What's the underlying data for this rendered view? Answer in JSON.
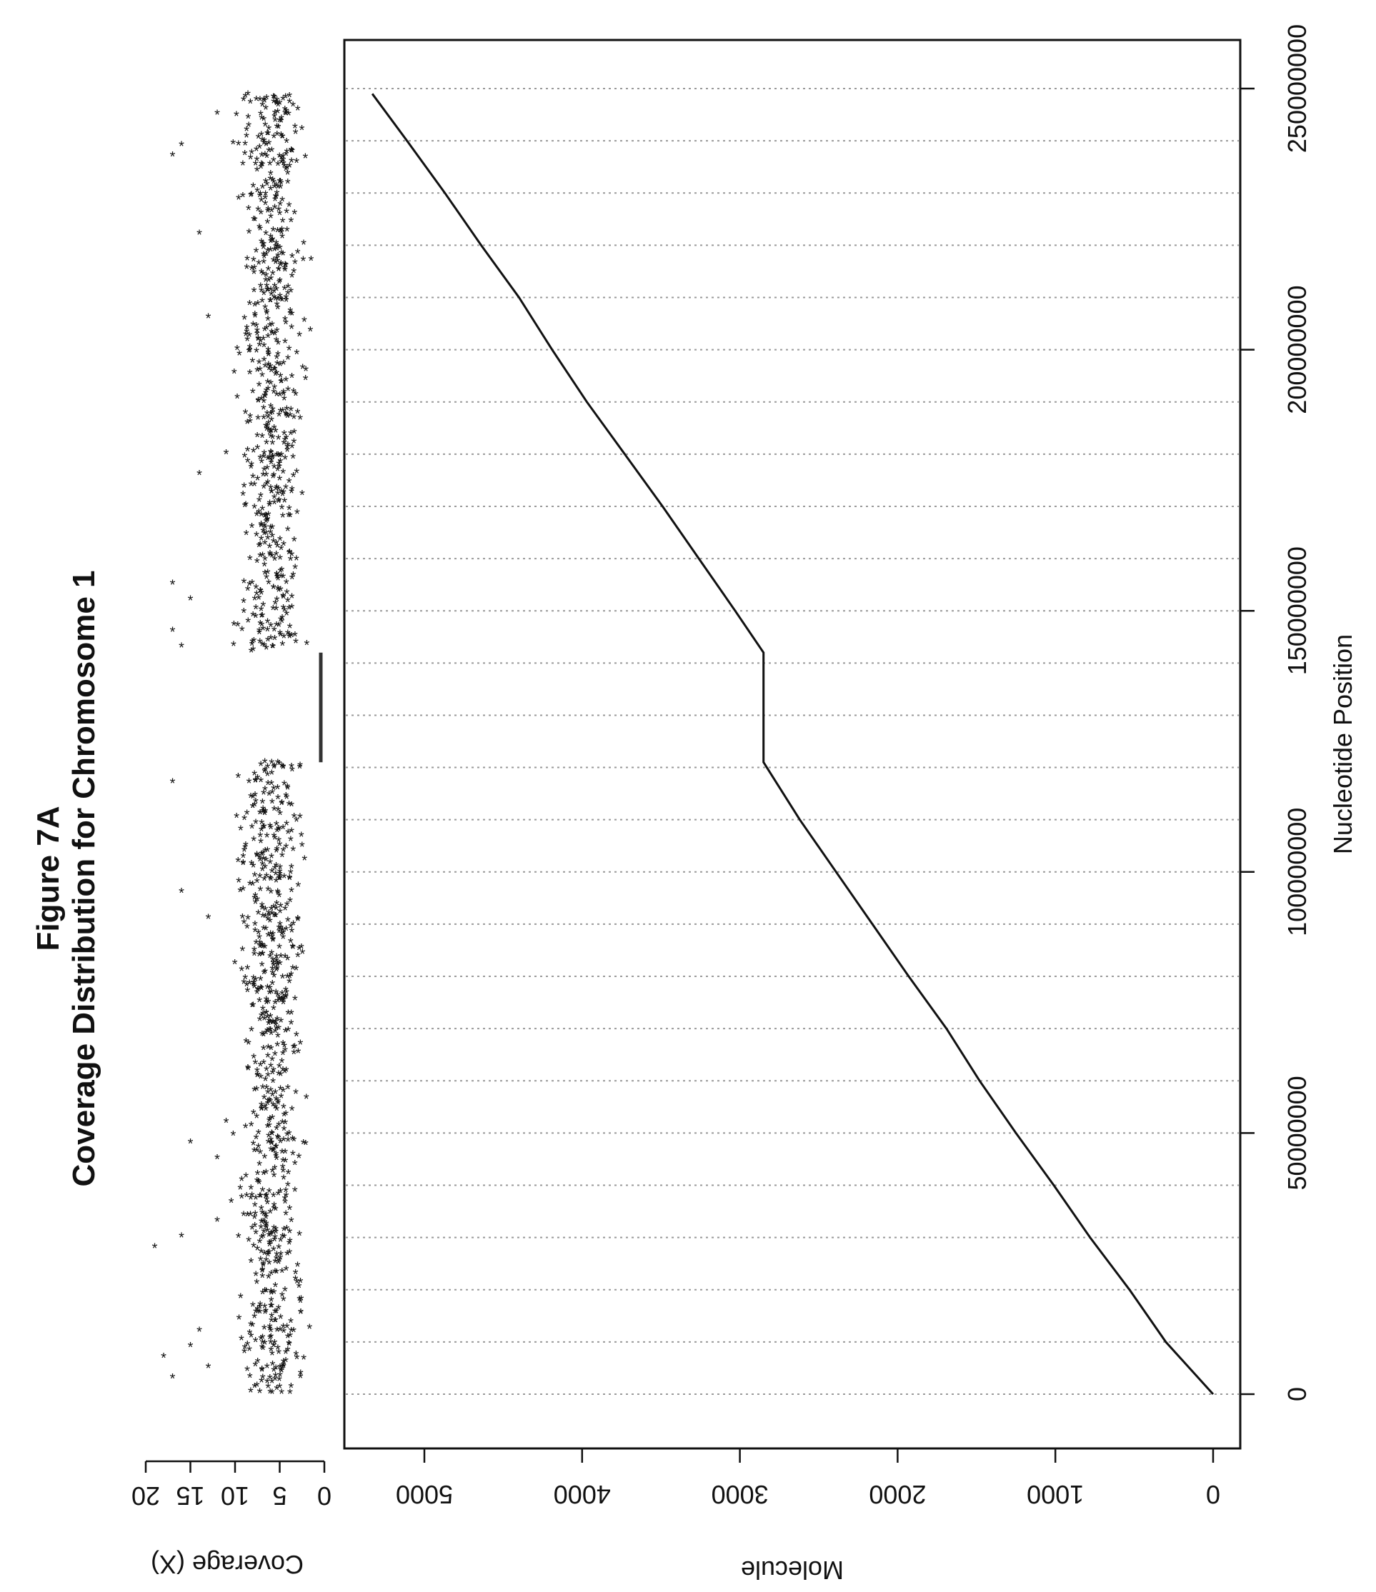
{
  "figure": {
    "title": "Figure 7A",
    "subtitle": "Coverage Distribution for Chromosome 1"
  },
  "chart_data": [
    {
      "type": "scatter",
      "name": "coverage",
      "xlabel": "Nucleotide Position",
      "ylabel": "Coverage (X)",
      "xlim": [
        0,
        250000000
      ],
      "ylim": [
        0,
        20
      ],
      "y_ticks": [
        0,
        5,
        10,
        15,
        20
      ],
      "y_tick_labels": [
        "0",
        "5",
        "10",
        "15",
        "20"
      ],
      "gap_region": [
        121000000,
        142000000
      ],
      "segments": [
        {
          "x_start": 0,
          "x_end": 121000000,
          "mean": 6,
          "spread": 3
        },
        {
          "x_start": 142000000,
          "x_end": 249000000,
          "mean": 6,
          "spread": 3
        }
      ],
      "outliers": [
        {
          "x": 3000000,
          "y": 17
        },
        {
          "x": 5000000,
          "y": 13
        },
        {
          "x": 7000000,
          "y": 18
        },
        {
          "x": 9000000,
          "y": 15
        },
        {
          "x": 12000000,
          "y": 14
        },
        {
          "x": 28000000,
          "y": 19
        },
        {
          "x": 30000000,
          "y": 16
        },
        {
          "x": 33000000,
          "y": 12
        },
        {
          "x": 45000000,
          "y": 12
        },
        {
          "x": 48000000,
          "y": 15
        },
        {
          "x": 52000000,
          "y": 11
        },
        {
          "x": 91000000,
          "y": 13
        },
        {
          "x": 96000000,
          "y": 16
        },
        {
          "x": 117000000,
          "y": 17
        },
        {
          "x": 143000000,
          "y": 16
        },
        {
          "x": 146000000,
          "y": 17
        },
        {
          "x": 152000000,
          "y": 15
        },
        {
          "x": 155000000,
          "y": 17
        },
        {
          "x": 176000000,
          "y": 14
        },
        {
          "x": 180000000,
          "y": 11
        },
        {
          "x": 206000000,
          "y": 13
        },
        {
          "x": 222000000,
          "y": 14
        },
        {
          "x": 237000000,
          "y": 17
        },
        {
          "x": 239000000,
          "y": 16
        },
        {
          "x": 245000000,
          "y": 12
        }
      ]
    },
    {
      "type": "line",
      "name": "molecule",
      "xlabel": "Nucleotide Position",
      "ylabel": "Molecule",
      "xlim": [
        0,
        250000000
      ],
      "ylim": [
        0,
        5000
      ],
      "grid": true,
      "x_ticks": [
        0,
        50000000,
        100000000,
        150000000,
        200000000,
        250000000
      ],
      "x_tick_labels": [
        "0",
        "50000000",
        "100000000",
        "150000000",
        "200000000",
        "250000000"
      ],
      "y_ticks": [
        0,
        1000,
        2000,
        3000,
        4000,
        5000
      ],
      "y_tick_labels": [
        "0",
        "1000",
        "2000",
        "3000",
        "4000",
        "5000"
      ],
      "x": [
        0,
        10000000,
        20000000,
        30000000,
        40000000,
        50000000,
        60000000,
        70000000,
        80000000,
        90000000,
        100000000,
        110000000,
        121000000,
        142000000,
        150000000,
        160000000,
        170000000,
        180000000,
        190000000,
        200000000,
        210000000,
        220000000,
        230000000,
        240000000,
        249000000
      ],
      "y": [
        0,
        300,
        530,
        780,
        1010,
        1250,
        1480,
        1690,
        1930,
        2160,
        2390,
        2620,
        2850,
        2850,
        3030,
        3260,
        3490,
        3730,
        3970,
        4190,
        4400,
        4640,
        4870,
        5110,
        5330
      ]
    }
  ]
}
